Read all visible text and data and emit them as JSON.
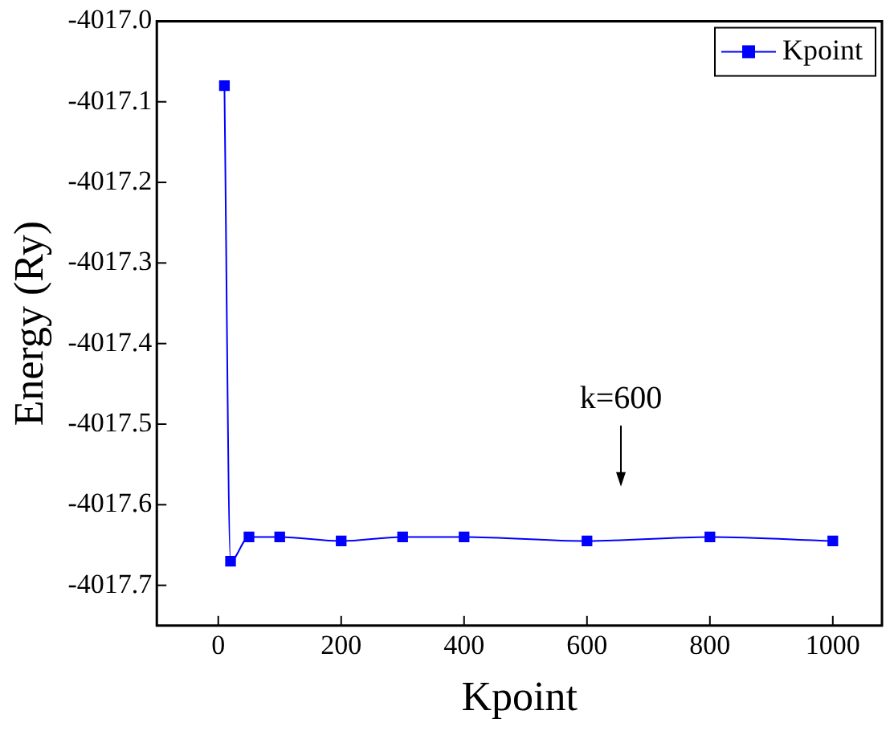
{
  "chart_data": {
    "type": "line",
    "xlabel": "Kpoint",
    "ylabel": "Energy (Ry)",
    "x": [
      10,
      20,
      50,
      100,
      200,
      300,
      400,
      600,
      800,
      1000
    ],
    "series": [
      {
        "name": "Kpoint",
        "color": "#0000ff",
        "values": [
          -4017.08,
          -4017.67,
          -4017.64,
          -4017.64,
          -4017.645,
          -4017.64,
          -4017.64,
          -4017.645,
          -4017.64,
          -4017.645
        ]
      }
    ],
    "xlim": [
      -100,
      1080
    ],
    "xticks": [
      0,
      200,
      400,
      600,
      800,
      1000
    ],
    "ylim": [
      -4017.75,
      -4017.0
    ],
    "yticks": [
      {
        "value": -4017.0,
        "label": "-4017.0"
      },
      -4017.1,
      -4017.2,
      -4017.3,
      -4017.4,
      -4017.5,
      -4017.6,
      -4017.7
    ],
    "annotations": [
      "k=600"
    ],
    "legend": "top right",
    "marker": "square",
    "grid": false
  }
}
